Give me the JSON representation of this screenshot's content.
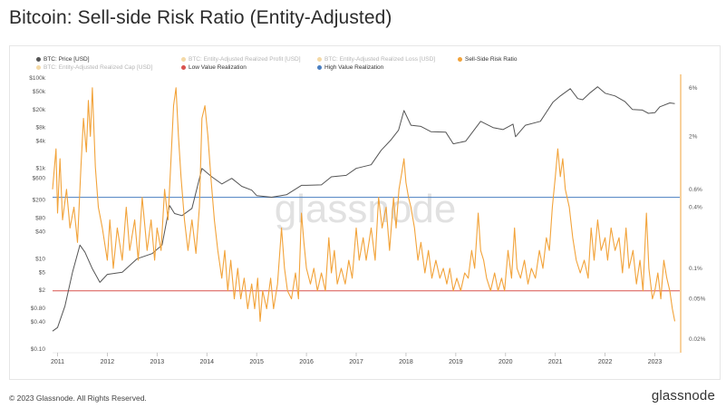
{
  "title": "Bitcoin: Sell-side Risk Ratio (Entity-Adjusted)",
  "watermark": "glassnode",
  "footer": {
    "copyright": "© 2023 Glassnode. All Rights Reserved.",
    "logo": "glassnode"
  },
  "legend": [
    {
      "label": "BTC: Price [USD]",
      "color": "#555555",
      "faded": false
    },
    {
      "label": "BTC: Entity-Adjusted Realized Profit [USD]",
      "color": "#e8a33a",
      "faded": true
    },
    {
      "label": "BTC: Entity-Adjusted Realized Loss [USD]",
      "color": "#e8a33a",
      "faded": true
    },
    {
      "label": "Sell-Side Risk Ratio",
      "color": "#f2a33a",
      "faded": false
    },
    {
      "label": "BTC: Entity-Adjusted Realized Cap [USD]",
      "color": "#e8a33a",
      "faded": true
    },
    {
      "label": "Low Value Realization",
      "color": "#d9534f",
      "faded": false
    },
    {
      "label": "High Value Realization",
      "color": "#4a7fc1",
      "faded": false
    }
  ],
  "colors": {
    "price": "#555555",
    "ratio": "#f2a33a",
    "low": "#d9534f",
    "high": "#4a7fc1"
  },
  "chart_data": {
    "type": "line",
    "title": "Bitcoin: Sell-side Risk Ratio (Entity-Adjusted)",
    "x_ticks": [
      "2011",
      "2012",
      "2013",
      "2014",
      "2015",
      "2016",
      "2017",
      "2018",
      "2019",
      "2020",
      "2021",
      "2022",
      "2023"
    ],
    "x_range": [
      2010.9,
      2023.5
    ],
    "y_left": {
      "scale": "log",
      "range": [
        0.1,
        100000
      ],
      "tick_labels": [
        "$100k",
        "$50k",
        "$20k",
        "$8k",
        "$4k",
        "$1k",
        "$600",
        "$200",
        "$80",
        "$40",
        "$10",
        "$5",
        "$2",
        "$0.80",
        "$0.40",
        "$0.10"
      ],
      "tick_values": [
        100000,
        50000,
        20000,
        8000,
        4000,
        1000,
        600,
        200,
        80,
        40,
        10,
        5,
        2,
        0.8,
        0.4,
        0.1
      ]
    },
    "y_right": {
      "scale": "log",
      "range": [
        0.00016,
        0.075
      ],
      "tick_labels": [
        "6%",
        "2%",
        "0.6%",
        "0.4%",
        "0.1%",
        "0.05%",
        "0.02%"
      ],
      "tick_values": [
        0.06,
        0.02,
        0.006,
        0.004,
        0.001,
        0.0005,
        0.0002
      ]
    },
    "thresholds": {
      "low_value_realization": 0.0006,
      "high_value_realization": 0.005
    },
    "series": [
      {
        "name": "BTC: Price [USD]",
        "axis": "left",
        "points": [
          [
            2010.9,
            0.25
          ],
          [
            2011.0,
            0.3
          ],
          [
            2011.15,
            0.9
          ],
          [
            2011.3,
            5
          ],
          [
            2011.45,
            20
          ],
          [
            2011.55,
            14
          ],
          [
            2011.7,
            6
          ],
          [
            2011.85,
            3
          ],
          [
            2012.0,
            4.5
          ],
          [
            2012.3,
            5
          ],
          [
            2012.6,
            10
          ],
          [
            2012.9,
            13
          ],
          [
            2013.1,
            20
          ],
          [
            2013.25,
            150
          ],
          [
            2013.35,
            100
          ],
          [
            2013.5,
            90
          ],
          [
            2013.7,
            130
          ],
          [
            2013.9,
            1000
          ],
          [
            2014.0,
            800
          ],
          [
            2014.1,
            650
          ],
          [
            2014.3,
            450
          ],
          [
            2014.5,
            600
          ],
          [
            2014.7,
            400
          ],
          [
            2014.9,
            330
          ],
          [
            2015.0,
            250
          ],
          [
            2015.3,
            230
          ],
          [
            2015.6,
            260
          ],
          [
            2015.9,
            420
          ],
          [
            2016.0,
            420
          ],
          [
            2016.3,
            430
          ],
          [
            2016.5,
            650
          ],
          [
            2016.8,
            700
          ],
          [
            2017.0,
            1000
          ],
          [
            2017.3,
            1200
          ],
          [
            2017.5,
            2500
          ],
          [
            2017.7,
            4300
          ],
          [
            2017.85,
            7000
          ],
          [
            2017.96,
            19000
          ],
          [
            2018.1,
            9000
          ],
          [
            2018.3,
            8500
          ],
          [
            2018.5,
            6500
          ],
          [
            2018.8,
            6300
          ],
          [
            2018.95,
            3500
          ],
          [
            2019.2,
            4000
          ],
          [
            2019.5,
            11000
          ],
          [
            2019.75,
            8000
          ],
          [
            2019.95,
            7200
          ],
          [
            2020.15,
            9500
          ],
          [
            2020.2,
            5000
          ],
          [
            2020.4,
            9000
          ],
          [
            2020.7,
            11000
          ],
          [
            2020.95,
            29000
          ],
          [
            2021.1,
            40000
          ],
          [
            2021.3,
            58000
          ],
          [
            2021.45,
            35000
          ],
          [
            2021.55,
            33000
          ],
          [
            2021.7,
            47000
          ],
          [
            2021.85,
            64000
          ],
          [
            2022.0,
            46000
          ],
          [
            2022.2,
            40000
          ],
          [
            2022.4,
            30000
          ],
          [
            2022.55,
            20000
          ],
          [
            2022.75,
            19500
          ],
          [
            2022.87,
            16500
          ],
          [
            2023.0,
            17000
          ],
          [
            2023.1,
            23000
          ],
          [
            2023.3,
            28000
          ],
          [
            2023.4,
            27000
          ]
        ]
      },
      {
        "name": "Sell-Side Risk Ratio",
        "axis": "right",
        "points": [
          [
            2010.9,
            0.006
          ],
          [
            2010.97,
            0.015
          ],
          [
            2011.0,
            0.0035
          ],
          [
            2011.05,
            0.012
          ],
          [
            2011.1,
            0.003
          ],
          [
            2011.18,
            0.006
          ],
          [
            2011.25,
            0.0025
          ],
          [
            2011.33,
            0.004
          ],
          [
            2011.4,
            0.0018
          ],
          [
            2011.47,
            0.01
          ],
          [
            2011.52,
            0.03
          ],
          [
            2011.58,
            0.014
          ],
          [
            2011.62,
            0.045
          ],
          [
            2011.66,
            0.02
          ],
          [
            2011.7,
            0.06
          ],
          [
            2011.76,
            0.01
          ],
          [
            2011.82,
            0.004
          ],
          [
            2011.9,
            0.0025
          ],
          [
            2012.0,
            0.0012
          ],
          [
            2012.05,
            0.003
          ],
          [
            2012.12,
            0.001
          ],
          [
            2012.2,
            0.0025
          ],
          [
            2012.3,
            0.0012
          ],
          [
            2012.38,
            0.004
          ],
          [
            2012.45,
            0.0015
          ],
          [
            2012.55,
            0.003
          ],
          [
            2012.62,
            0.0012
          ],
          [
            2012.7,
            0.005
          ],
          [
            2012.8,
            0.0015
          ],
          [
            2012.88,
            0.003
          ],
          [
            2012.95,
            0.0012
          ],
          [
            2013.0,
            0.0025
          ],
          [
            2013.08,
            0.0015
          ],
          [
            2013.15,
            0.006
          ],
          [
            2013.22,
            0.003
          ],
          [
            2013.28,
            0.012
          ],
          [
            2013.33,
            0.04
          ],
          [
            2013.38,
            0.06
          ],
          [
            2013.43,
            0.02
          ],
          [
            2013.48,
            0.008
          ],
          [
            2013.55,
            0.003
          ],
          [
            2013.62,
            0.0015
          ],
          [
            2013.7,
            0.003
          ],
          [
            2013.78,
            0.0014
          ],
          [
            2013.85,
            0.004
          ],
          [
            2013.9,
            0.03
          ],
          [
            2013.96,
            0.04
          ],
          [
            2014.02,
            0.02
          ],
          [
            2014.08,
            0.008
          ],
          [
            2014.15,
            0.003
          ],
          [
            2014.22,
            0.0015
          ],
          [
            2014.3,
            0.0008
          ],
          [
            2014.36,
            0.0015
          ],
          [
            2014.42,
            0.0006
          ],
          [
            2014.48,
            0.0012
          ],
          [
            2014.55,
            0.0005
          ],
          [
            2014.62,
            0.001
          ],
          [
            2014.68,
            0.0005
          ],
          [
            2014.75,
            0.0008
          ],
          [
            2014.82,
            0.0004
          ],
          [
            2014.9,
            0.0007
          ],
          [
            2014.96,
            0.0004
          ],
          [
            2015.02,
            0.0008
          ],
          [
            2015.07,
            0.0003
          ],
          [
            2015.12,
            0.0006
          ],
          [
            2015.2,
            0.0004
          ],
          [
            2015.28,
            0.0008
          ],
          [
            2015.34,
            0.0004
          ],
          [
            2015.42,
            0.0007
          ],
          [
            2015.5,
            0.0025
          ],
          [
            2015.56,
            0.001
          ],
          [
            2015.62,
            0.0006
          ],
          [
            2015.7,
            0.0005
          ],
          [
            2015.78,
            0.0009
          ],
          [
            2015.84,
            0.0005
          ],
          [
            2015.9,
            0.0035
          ],
          [
            2015.95,
            0.0018
          ],
          [
            2016.0,
            0.001
          ],
          [
            2016.08,
            0.0007
          ],
          [
            2016.15,
            0.001
          ],
          [
            2016.22,
            0.0006
          ],
          [
            2016.3,
            0.0009
          ],
          [
            2016.38,
            0.0006
          ],
          [
            2016.45,
            0.002
          ],
          [
            2016.5,
            0.0009
          ],
          [
            2016.56,
            0.0015
          ],
          [
            2016.62,
            0.0007
          ],
          [
            2016.7,
            0.001
          ],
          [
            2016.78,
            0.0007
          ],
          [
            2016.85,
            0.0012
          ],
          [
            2016.92,
            0.0008
          ],
          [
            2017.0,
            0.0025
          ],
          [
            2017.06,
            0.0012
          ],
          [
            2017.14,
            0.002
          ],
          [
            2017.2,
            0.0012
          ],
          [
            2017.3,
            0.0025
          ],
          [
            2017.38,
            0.0012
          ],
          [
            2017.45,
            0.005
          ],
          [
            2017.52,
            0.0025
          ],
          [
            2017.6,
            0.004
          ],
          [
            2017.67,
            0.0015
          ],
          [
            2017.75,
            0.005
          ],
          [
            2017.8,
            0.0025
          ],
          [
            2017.86,
            0.006
          ],
          [
            2017.92,
            0.009
          ],
          [
            2017.96,
            0.012
          ],
          [
            2018.0,
            0.007
          ],
          [
            2018.05,
            0.005
          ],
          [
            2018.1,
            0.004
          ],
          [
            2018.17,
            0.0025
          ],
          [
            2018.24,
            0.0012
          ],
          [
            2018.3,
            0.0018
          ],
          [
            2018.38,
            0.0009
          ],
          [
            2018.45,
            0.0015
          ],
          [
            2018.52,
            0.0008
          ],
          [
            2018.6,
            0.0012
          ],
          [
            2018.68,
            0.0008
          ],
          [
            2018.75,
            0.001
          ],
          [
            2018.82,
            0.0007
          ],
          [
            2018.88,
            0.001
          ],
          [
            2018.95,
            0.0006
          ],
          [
            2019.02,
            0.0008
          ],
          [
            2019.1,
            0.0006
          ],
          [
            2019.18,
            0.0009
          ],
          [
            2019.25,
            0.0008
          ],
          [
            2019.32,
            0.0015
          ],
          [
            2019.38,
            0.001
          ],
          [
            2019.45,
            0.0035
          ],
          [
            2019.5,
            0.0015
          ],
          [
            2019.56,
            0.0012
          ],
          [
            2019.62,
            0.0008
          ],
          [
            2019.7,
            0.0006
          ],
          [
            2019.78,
            0.0009
          ],
          [
            2019.85,
            0.0006
          ],
          [
            2019.92,
            0.0008
          ],
          [
            2019.98,
            0.0006
          ],
          [
            2020.05,
            0.0015
          ],
          [
            2020.12,
            0.0008
          ],
          [
            2020.18,
            0.0025
          ],
          [
            2020.23,
            0.001
          ],
          [
            2020.3,
            0.0008
          ],
          [
            2020.38,
            0.0012
          ],
          [
            2020.45,
            0.0007
          ],
          [
            2020.52,
            0.001
          ],
          [
            2020.6,
            0.0008
          ],
          [
            2020.68,
            0.0015
          ],
          [
            2020.75,
            0.001
          ],
          [
            2020.82,
            0.002
          ],
          [
            2020.88,
            0.0015
          ],
          [
            2020.94,
            0.004
          ],
          [
            2021.0,
            0.008
          ],
          [
            2021.05,
            0.015
          ],
          [
            2021.1,
            0.008
          ],
          [
            2021.15,
            0.012
          ],
          [
            2021.2,
            0.006
          ],
          [
            2021.28,
            0.004
          ],
          [
            2021.35,
            0.002
          ],
          [
            2021.42,
            0.0012
          ],
          [
            2021.5,
            0.0009
          ],
          [
            2021.58,
            0.0012
          ],
          [
            2021.66,
            0.0008
          ],
          [
            2021.72,
            0.0025
          ],
          [
            2021.78,
            0.0012
          ],
          [
            2021.85,
            0.003
          ],
          [
            2021.92,
            0.0015
          ],
          [
            2022.0,
            0.002
          ],
          [
            2022.05,
            0.0012
          ],
          [
            2022.12,
            0.0025
          ],
          [
            2022.2,
            0.0015
          ],
          [
            2022.28,
            0.002
          ],
          [
            2022.35,
            0.0009
          ],
          [
            2022.42,
            0.0025
          ],
          [
            2022.48,
            0.001
          ],
          [
            2022.56,
            0.0015
          ],
          [
            2022.63,
            0.0007
          ],
          [
            2022.7,
            0.0012
          ],
          [
            2022.76,
            0.0006
          ],
          [
            2022.83,
            0.0035
          ],
          [
            2022.88,
            0.001
          ],
          [
            2022.95,
            0.0005
          ],
          [
            2023.0,
            0.0006
          ],
          [
            2023.06,
            0.0009
          ],
          [
            2023.12,
            0.0005
          ],
          [
            2023.18,
            0.0012
          ],
          [
            2023.24,
            0.0008
          ],
          [
            2023.3,
            0.0006
          ],
          [
            2023.35,
            0.0004
          ],
          [
            2023.4,
            0.0003
          ]
        ]
      }
    ]
  }
}
